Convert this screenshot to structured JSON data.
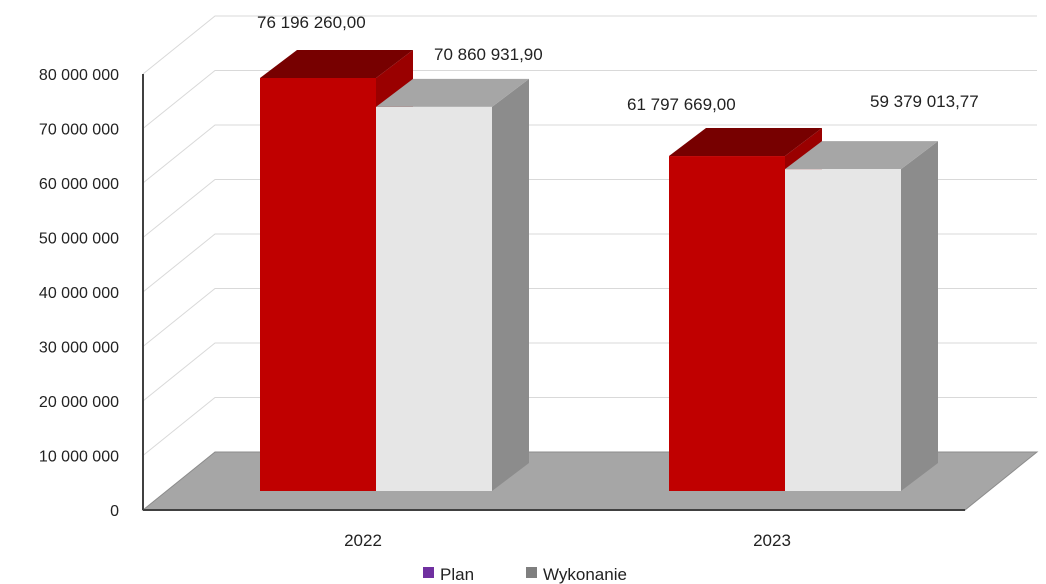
{
  "chart_data": {
    "type": "bar",
    "categories": [
      "2022",
      "2023"
    ],
    "series": [
      {
        "name": "Plan",
        "values": [
          76196260.0,
          61797669.0
        ],
        "labels": [
          "76 196 260,00",
          "61 797 669,00"
        ],
        "color": "#c00000",
        "legend_color": "#7030a0"
      },
      {
        "name": "Wykonanie",
        "values": [
          70860931.9,
          59379013.77
        ],
        "labels": [
          "70 860 931,90",
          "59 379 013,77"
        ],
        "color": "#e6e6e6",
        "legend_color": "#7f7f7f"
      }
    ],
    "yticks": [
      0,
      10000000,
      20000000,
      30000000,
      40000000,
      50000000,
      60000000,
      70000000,
      80000000
    ],
    "ytick_labels": [
      "0",
      "10 000 000",
      "20 000 000",
      "30 000 000",
      "40 000 000",
      "50 000 000",
      "60 000 000",
      "70 000 000",
      "80 000 000"
    ],
    "ylim": [
      0,
      80000000
    ],
    "title": "",
    "xlabel": "",
    "ylabel": "",
    "grid": true,
    "legend_position": "bottom",
    "style": "3d-clustered-column"
  }
}
